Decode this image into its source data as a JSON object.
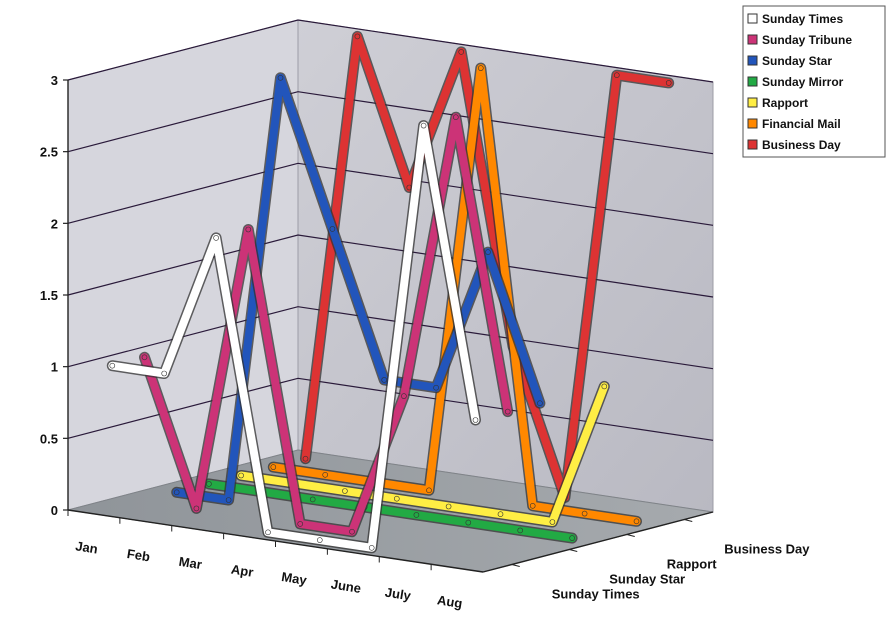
{
  "chart_data": {
    "type": "line",
    "style": "3d-ribbon",
    "title": "",
    "xlabel": "",
    "ylabel": "",
    "ylim": [
      0,
      3
    ],
    "yticks": [
      "0",
      "0.5",
      "1",
      "1.5",
      "2",
      "2.5",
      "3"
    ],
    "categories": [
      "Jan",
      "Feb",
      "Mar",
      "Apr",
      "May",
      "June",
      "July",
      "Aug"
    ],
    "depth_labels": [
      "Sunday Times",
      "Sunday Star",
      "Rapport",
      "Business Day"
    ],
    "legend_position": "top-right",
    "grid": true,
    "legend": [
      "Sunday Times",
      "Sunday Tribune",
      "Sunday Star",
      "Sunday Mirror",
      "Rapport",
      "Financial Mail",
      "Business Day"
    ],
    "series": [
      {
        "name": "Sunday Times",
        "color": "#ffffff",
        "values": [
          1.0,
          1.0,
          2.0,
          0.0,
          0.0,
          0.0,
          3.0,
          1.0
        ]
      },
      {
        "name": "Sunday Tribune",
        "color": "#cc3377",
        "values": [
          1.0,
          0.0,
          2.0,
          0.0,
          0.0,
          1.0,
          3.0,
          1.0
        ]
      },
      {
        "name": "Sunday Star",
        "color": "#2255bb",
        "values": [
          0.0,
          0.0,
          3.0,
          2.0,
          1.0,
          1.0,
          2.0,
          1.0
        ]
      },
      {
        "name": "Sunday Mirror",
        "color": "#22aa44",
        "values": [
          0.0,
          0.0,
          0.0,
          0.0,
          0.0,
          0.0,
          0.0,
          0.0
        ]
      },
      {
        "name": "Rapport",
        "color": "#ffee44",
        "values": [
          0.0,
          0.0,
          0.0,
          0.0,
          0.0,
          0.0,
          0.0,
          1.0
        ]
      },
      {
        "name": "Financial Mail",
        "color": "#ff8800",
        "values": [
          0.0,
          0.0,
          0.0,
          0.0,
          3.0,
          0.0,
          0.0,
          0.0
        ]
      },
      {
        "name": "Business Day",
        "color": "#dd3333",
        "values": [
          0.0,
          3.0,
          2.0,
          3.0,
          1.0,
          0.0,
          3.0,
          3.0
        ]
      }
    ]
  }
}
